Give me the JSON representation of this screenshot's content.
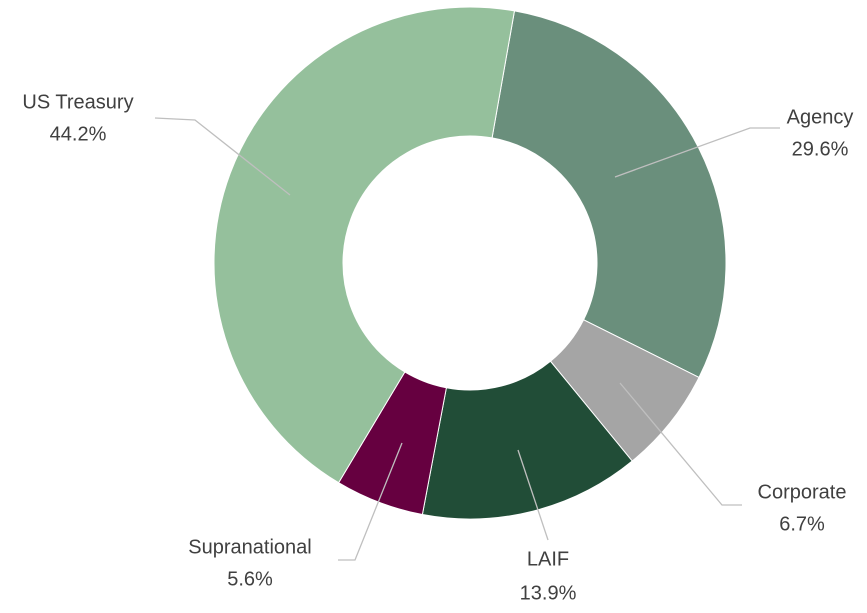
{
  "chart_data": {
    "type": "donut",
    "categories": [
      "Agency",
      "Corporate",
      "LAIF",
      "Supranational",
      "US Treasury"
    ],
    "values": [
      29.6,
      6.7,
      13.9,
      5.6,
      44.2
    ],
    "value_labels": [
      "29.6%",
      "6.7%",
      "13.9%",
      "5.6%",
      "44.2%"
    ],
    "colors": [
      "#6a8f7c",
      "#a5a5a5",
      "#214d37",
      "#660040",
      "#95c09c"
    ]
  }
}
